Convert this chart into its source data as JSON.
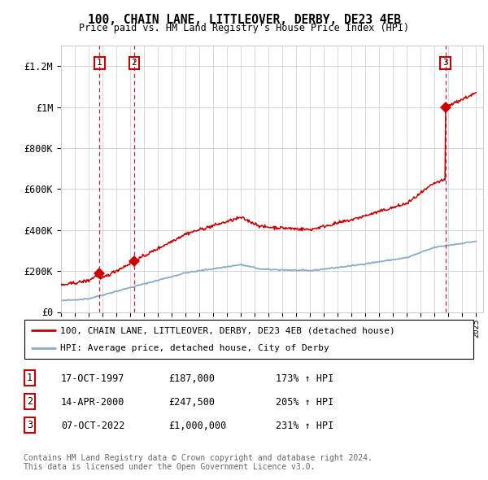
{
  "title1": "100, CHAIN LANE, LITTLEOVER, DERBY, DE23 4EB",
  "title2": "Price paid vs. HM Land Registry's House Price Index (HPI)",
  "ylabel_values": [
    "£0",
    "£200K",
    "£400K",
    "£600K",
    "£800K",
    "£1M",
    "£1.2M"
  ],
  "y_tick_values": [
    0,
    200000,
    400000,
    600000,
    800000,
    1000000,
    1200000
  ],
  "ylim": [
    0,
    1300000
  ],
  "sale_decimal": [
    1997.79,
    2000.28,
    2022.77
  ],
  "sale_prices": [
    187000,
    247500,
    1000000
  ],
  "sale_labels": [
    "1",
    "2",
    "3"
  ],
  "legend_line1": "100, CHAIN LANE, LITTLEOVER, DERBY, DE23 4EB (detached house)",
  "legend_line2": "HPI: Average price, detached house, City of Derby",
  "table_rows": [
    {
      "label": "1",
      "date": "17-OCT-1997",
      "price": "£187,000",
      "hpi": "173% ↑ HPI"
    },
    {
      "label": "2",
      "date": "14-APR-2000",
      "price": "£247,500",
      "hpi": "205% ↑ HPI"
    },
    {
      "label": "3",
      "date": "07-OCT-2022",
      "price": "£1,000,000",
      "hpi": "231% ↑ HPI"
    }
  ],
  "footnote1": "Contains HM Land Registry data © Crown copyright and database right 2024.",
  "footnote2": "This data is licensed under the Open Government Licence v3.0.",
  "property_line_color": "#cc0000",
  "hpi_line_color": "#88aacc",
  "dashed_line_color": "#cc0000",
  "shade_color": "#ddeeff",
  "background_color": "#ffffff",
  "grid_color": "#cccccc",
  "xlim": [
    1995,
    2025.5
  ]
}
